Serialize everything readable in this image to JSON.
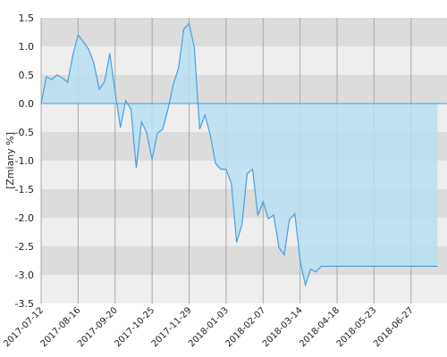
{
  "chart_data": {
    "type": "area",
    "title": "",
    "xlabel": "",
    "ylabel": "[Zmiany %]",
    "ylim": [
      -3.5,
      1.5
    ],
    "y_ticks": [
      "1.5",
      "1.0",
      "0.5",
      "0.0",
      "-0.5",
      "-1.0",
      "-1.5",
      "-2.0",
      "-2.5",
      "-3.0",
      "-3.5"
    ],
    "x_tick_labels": [
      "2017-07-12",
      "2017-08-16",
      "2017-09-20",
      "2017-10-25",
      "2017-11-29",
      "2018-01-03",
      "2018-02-07",
      "2018-03-14",
      "2018-04-18",
      "2018-05-23",
      "2018-06-27"
    ],
    "x_range": [
      "2017-07-12",
      "2018-07-31"
    ],
    "grid": "horizontal bands and vertical lines",
    "colors": {
      "line": "#4a9fe0",
      "fill": "#b9dff0",
      "band_dark": "#dcdcdc",
      "band_light": "#eeeeee",
      "grid_line": "#aaaaaa"
    },
    "series": [
      {
        "x": [
          "2017-07-12",
          "2017-07-17",
          "2017-07-22",
          "2017-07-27",
          "2017-08-01",
          "2017-08-06",
          "2017-08-11",
          "2017-08-16",
          "2017-08-21",
          "2017-08-26",
          "2017-08-31",
          "2017-09-05",
          "2017-09-10",
          "2017-09-15",
          "2017-09-20",
          "2017-09-25",
          "2017-09-30",
          "2017-10-05",
          "2017-10-10",
          "2017-10-15",
          "2017-10-20",
          "2017-10-25",
          "2017-10-30",
          "2017-11-04",
          "2017-11-09",
          "2017-11-14",
          "2017-11-19",
          "2017-11-24",
          "2017-11-29",
          "2017-12-04",
          "2017-12-09",
          "2017-12-14",
          "2017-12-19",
          "2017-12-24",
          "2017-12-29",
          "2018-01-03",
          "2018-01-08",
          "2018-01-13",
          "2018-01-18",
          "2018-01-23",
          "2018-01-28",
          "2018-02-02",
          "2018-02-07",
          "2018-02-12",
          "2018-02-17",
          "2018-02-22",
          "2018-02-27",
          "2018-03-04",
          "2018-03-09",
          "2018-03-14",
          "2018-03-19",
          "2018-03-24",
          "2018-03-29",
          "2018-04-03",
          "2018-04-08",
          "2018-04-13",
          "2018-04-18",
          "2018-04-23",
          "2018-04-28",
          "2018-05-03",
          "2018-05-08",
          "2018-05-13",
          "2018-05-18",
          "2018-05-23",
          "2018-05-28",
          "2018-06-02",
          "2018-06-07",
          "2018-06-12",
          "2018-06-17",
          "2018-06-22",
          "2018-06-27",
          "2018-07-02",
          "2018-07-07",
          "2018-07-12",
          "2018-07-17",
          "2018-07-22"
        ],
        "values": [
          0.0,
          0.47,
          0.42,
          0.5,
          0.45,
          0.37,
          0.85,
          1.2,
          1.08,
          0.95,
          0.7,
          0.25,
          0.38,
          0.88,
          0.2,
          -0.42,
          0.05,
          -0.1,
          -1.13,
          -0.32,
          -0.52,
          -0.98,
          -0.52,
          -0.45,
          -0.1,
          0.33,
          0.62,
          1.3,
          1.4,
          0.98,
          -0.45,
          -0.2,
          -0.55,
          -1.05,
          -1.15,
          -1.15,
          -1.4,
          -2.43,
          -2.12,
          -1.23,
          -1.15,
          -1.96,
          -1.72,
          -2.02,
          -1.95,
          -2.52,
          -2.65,
          -2.03,
          -1.93,
          -2.75,
          -3.18,
          -2.9,
          -2.95,
          -2.85,
          -2.85,
          -2.85,
          -2.85,
          -2.85,
          -2.85,
          -2.85,
          -2.85,
          -2.85,
          -2.85,
          -2.85,
          -2.85,
          -2.85,
          -2.85,
          -2.85,
          -2.85,
          -2.85,
          -2.85,
          -2.85,
          -2.85,
          -2.85,
          -2.85,
          -2.85
        ]
      }
    ]
  }
}
